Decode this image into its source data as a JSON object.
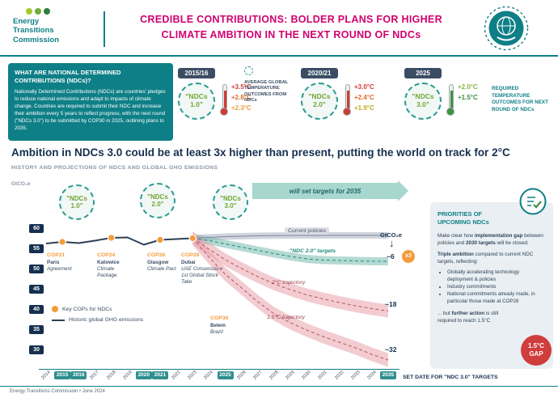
{
  "header": {
    "logo": {
      "line1": "Energy",
      "line2": "Transitions",
      "line3": "Commission"
    },
    "title_line1": "CREDIBLE CONTRIBUTIONS: BOLDER PLANS FOR HIGHER",
    "title_line2": "CLIMATE AMBITION IN THE NEXT ROUND OF NDCs",
    "title_color": "#d0006f",
    "accent_teal": "#0e7f86"
  },
  "info_box": {
    "heading": "WHAT ARE NATIONAL DETERMINED CONTRIBUTIONS (NDCs)?",
    "body": "Nationally Determined Contributions (NDCs) are countries' pledges to reduce national emissions and adapt to impacts of climate change. Countries are required to submit their NDC and increase their ambition every 5 years to reflect progress, with the next round (\"NDCs 3.0\") to be submitted by COP30 in 2025, outlining plans to 2035."
  },
  "timeline": {
    "avg_label": "AVERAGE GLOBAL TEMPERATURE OUTCOMES FROM NDCs",
    "required_label": "REQUIRED TEMPERATURE OUTCOMES FOR NEXT ROUND OF NDCs",
    "groups": [
      {
        "year": "2015/16",
        "ndc_line1": "\"NDCs",
        "ndc_line2": "1.0\"",
        "temps": [
          {
            "t": "+3.5°C",
            "c": "#d03a32"
          },
          {
            "t": "+2.8°C",
            "c": "#e06a28"
          },
          {
            "t": "+2.3°C",
            "c": "#eda03a"
          }
        ]
      },
      {
        "year": "2020/21",
        "ndc_line1": "\"NDCs",
        "ndc_line2": "2.0\"",
        "temps": [
          {
            "t": "+3.0°C",
            "c": "#d03a32"
          },
          {
            "t": "+2.4°C",
            "c": "#e06a28"
          },
          {
            "t": "+1.9°C",
            "c": "#c8a727"
          }
        ]
      },
      {
        "year": "2025",
        "ndc_line1": "\"NDCs",
        "ndc_line2": "3.0\"",
        "temps": [
          {
            "t": "+2.0°C",
            "c": "#8ab53e"
          },
          {
            "t": "+1.5°C",
            "c": "#3d9144"
          }
        ]
      }
    ]
  },
  "headline": "Ambition in NDCs 3.0 could be at least 3x higher than present, putting the world on track for 2°C",
  "chart_data": {
    "type": "line",
    "title": "HISTORY AND PROJECTIONS OF NDCS AND GLOBAL GHG EMISSIONS",
    "ylabel": "GtCO₂e",
    "ylim": [
      26,
      62
    ],
    "yticks": [
      60,
      55,
      50,
      45,
      40,
      35,
      30
    ],
    "x_years": [
      2014,
      2015,
      2016,
      2017,
      2018,
      2019,
      2020,
      2021,
      2022,
      2023,
      2024,
      2025,
      2026,
      2027,
      2028,
      2029,
      2030,
      2031,
      2032,
      2033,
      2034,
      2035
    ],
    "highlight_years": [
      2015,
      2016,
      2020,
      2021,
      2025,
      2035
    ],
    "series": [
      {
        "name": "Historic global GHG emissions",
        "kind": "line",
        "color": "#2e4154",
        "x": [
          2014,
          2015,
          2016,
          2017,
          2018,
          2019,
          2020,
          2021,
          2022,
          2023
        ],
        "values": [
          56.2,
          56.6,
          56.3,
          56.9,
          57.6,
          57.7,
          55.9,
          57.1,
          57.3,
          57.5
        ]
      },
      {
        "name": "Current policies",
        "kind": "band",
        "color": "#aab0c0",
        "line_color": "#8089a0",
        "half_width": 0.8,
        "opacity": 0.55,
        "dashed": false,
        "x": [
          2023,
          2025,
          2027,
          2029,
          2031,
          2033,
          2035
        ],
        "values": [
          57.5,
          57.9,
          58.1,
          58.2,
          58.2,
          58.2,
          58.2
        ]
      },
      {
        "name": "\"NDC 2.0\" targets",
        "kind": "band",
        "color": "#79bcae",
        "line_color": "#1f8a7d",
        "half_width": 1.0,
        "opacity": 0.55,
        "dashed": true,
        "x": [
          2023,
          2024,
          2025,
          2026,
          2027,
          2028,
          2029,
          2030,
          2031,
          2032,
          2033,
          2034,
          2035
        ],
        "values": [
          57.5,
          56.9,
          56.1,
          55.3,
          54.5,
          53.7,
          53.0,
          52.4,
          52.1,
          52.0,
          51.9,
          51.8,
          51.8
        ]
      },
      {
        "name": "2°C trajectory",
        "kind": "band",
        "color": "#e59aa3",
        "line_color": "#b95560",
        "half_width": 1.6,
        "opacity": 0.5,
        "dashed": true,
        "x": [
          2023,
          2024,
          2025,
          2026,
          2027,
          2028,
          2029,
          2030,
          2031,
          2032,
          2033,
          2034,
          2035
        ],
        "values": [
          57.5,
          54.8,
          52.2,
          50.0,
          48.0,
          46.2,
          44.8,
          43.5,
          42.5,
          41.6,
          40.8,
          40.1,
          39.5
        ]
      },
      {
        "name": "1.5°C trajectory",
        "kind": "band",
        "color": "#e59aa3",
        "line_color": "#b95560",
        "half_width": 1.7,
        "opacity": 0.5,
        "dashed": true,
        "x": [
          2023,
          2024,
          2025,
          2026,
          2027,
          2028,
          2029,
          2030,
          2031,
          2032,
          2033,
          2034,
          2035
        ],
        "values": [
          57.5,
          52.8,
          48.6,
          45.2,
          41.8,
          38.8,
          36.6,
          34.8,
          33.2,
          31.8,
          30.4,
          28.8,
          27.4
        ]
      }
    ],
    "cop_points": [
      {
        "year": 2015,
        "value": 56.6
      },
      {
        "year": 2018,
        "value": 57.6
      },
      {
        "year": 2021,
        "value": 57.1
      },
      {
        "year": 2023,
        "value": 57.5
      }
    ],
    "annotations": {
      "right_unit": "GtCO₂e",
      "gap_ndc2": "~6",
      "multiplier": "x3",
      "gap_2c": "~18",
      "gap_15c": "~32",
      "arrow_label": "will set targets for 2035",
      "set_date_note": "SET DATE FOR \"NDC 3.0\" TARGETS"
    },
    "legend": {
      "cops": "Key COPs for NDCs"
    }
  },
  "cops": [
    {
      "tag": "COP21",
      "name": "Paris",
      "sub": "Agreement"
    },
    {
      "tag": "COP24",
      "name": "Katowice",
      "sub": "Climate Package"
    },
    {
      "tag": "COP26",
      "name": "Glasgow",
      "sub": "Climate Pact"
    },
    {
      "tag": "COP28",
      "name": "Dubai",
      "sub": "UAE Consensus + 1st Global Stock Take"
    },
    {
      "tag": "COP30",
      "name": "Belem",
      "sub": "Brazil"
    }
  ],
  "priorities": {
    "title": "PRIORITIES OF UPCOMING NDCs",
    "para1": [
      {
        "t": "Make clear how ",
        "b": 0
      },
      {
        "t": "implementation gap",
        "b": 1
      },
      {
        "t": " between policies and ",
        "b": 0
      },
      {
        "t": "2030 targets",
        "b": 1
      },
      {
        "t": " will be closed.",
        "b": 0
      }
    ],
    "para2": [
      {
        "t": "Triple ambition",
        "b": 1
      },
      {
        "t": " compared to current NDC targets, reflecting:",
        "b": 0
      }
    ],
    "bullets": [
      "Globally accelerating technology deployment & policies",
      "Industry commitments",
      "National commitments already made, in particular those made at COP28"
    ],
    "para3": [
      {
        "t": "... but ",
        "b": 0
      },
      {
        "t": "further action",
        "b": 1
      },
      {
        "t": " is still required to reach 1.5°C",
        "b": 0
      }
    ],
    "gap_line1": "1.5°C",
    "gap_line2": "GAP"
  },
  "footer": "Energy Transitions Commission • June 2024"
}
